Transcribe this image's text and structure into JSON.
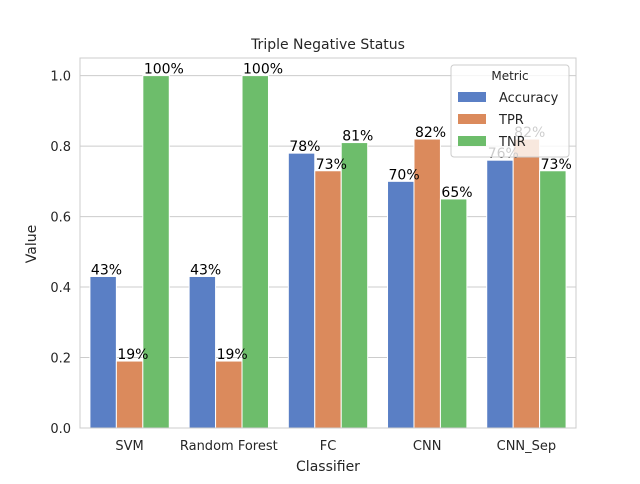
{
  "chart_data": {
    "type": "bar",
    "title": "Triple Negative Status",
    "xlabel": "Classifier",
    "ylabel": "Value",
    "ylim": [
      0,
      1.05
    ],
    "yticks": [
      0.0,
      0.2,
      0.4,
      0.6,
      0.8,
      1.0
    ],
    "ytick_labels": [
      "0.0",
      "0.2",
      "0.4",
      "0.6",
      "0.8",
      "1.0"
    ],
    "grid": true,
    "legend": {
      "title": "Metric",
      "placement": "top-right"
    },
    "categories": [
      "SVM",
      "Random Forest",
      "FC",
      "CNN",
      "CNN_Sep"
    ],
    "series": [
      {
        "name": "Accuracy",
        "color": "#5a7fc5",
        "values": [
          0.43,
          0.43,
          0.78,
          0.7,
          0.76
        ],
        "labels": [
          "43%",
          "43%",
          "78%",
          "70%",
          "76%"
        ]
      },
      {
        "name": "TPR",
        "color": "#db8a5c",
        "values": [
          0.19,
          0.19,
          0.73,
          0.82,
          0.82
        ],
        "labels": [
          "19%",
          "19%",
          "73%",
          "82%",
          "82%"
        ]
      },
      {
        "name": "TNR",
        "color": "#6dbd6b",
        "values": [
          1.0,
          1.0,
          0.81,
          0.65,
          0.73
        ],
        "labels": [
          "100%",
          "100%",
          "81%",
          "65%",
          "73%"
        ]
      }
    ]
  }
}
